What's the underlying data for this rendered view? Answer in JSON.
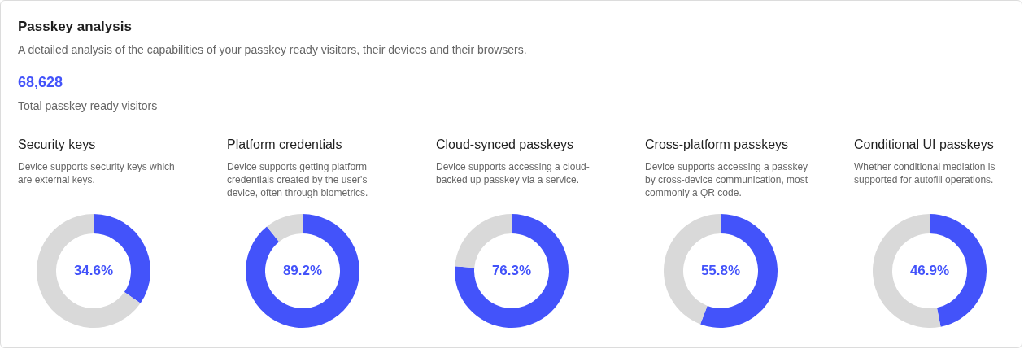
{
  "chart_data": [
    {
      "type": "other",
      "title": "Passkey analysis",
      "subtitle": "A detailed analysis of the capabilities of your passkey ready visitors, their devices and their browsers.",
      "annotations": [
        "68,628",
        "Total passkey ready visitors"
      ]
    },
    {
      "type": "donut",
      "title": "Security keys",
      "subtitle": "Device supports security keys which are external keys.",
      "categories": [
        null,
        null
      ],
      "values": [
        34.6,
        65.4
      ],
      "colors": [
        "#4353fa",
        "#d9d9d9"
      ],
      "value_labels": [
        "34.6%",
        null
      ]
    },
    {
      "type": "donut",
      "title": "Platform credentials",
      "subtitle": "Device supports getting platform credentials created by the user's device, often through biometrics.",
      "categories": [
        null,
        null
      ],
      "values": [
        89.2,
        10.8
      ],
      "colors": [
        "#4353fa",
        "#d9d9d9"
      ],
      "value_labels": [
        "89.2%",
        null
      ]
    },
    {
      "type": "donut",
      "title": "Cloud-synced passkeys",
      "subtitle": "Device supports accessing a cloud-backed up passkey via a service.",
      "categories": [
        null,
        null
      ],
      "values": [
        76.3,
        23.7
      ],
      "colors": [
        "#4353fa",
        "#d9d9d9"
      ],
      "value_labels": [
        "76.3%",
        null
      ]
    },
    {
      "type": "donut",
      "title": "Cross-platform passkeys",
      "subtitle": "Device supports accessing a passkey by cross-device communication, most commonly a QR code.",
      "categories": [
        null,
        null
      ],
      "values": [
        55.8,
        44.2
      ],
      "colors": [
        "#4353fa",
        "#d9d9d9"
      ],
      "value_labels": [
        "55.8%",
        null
      ]
    },
    {
      "type": "donut",
      "title": "Conditional UI passkeys",
      "subtitle": "Whether conditional mediation is supported for autofill operations.",
      "categories": [
        null,
        null
      ],
      "values": [
        46.9,
        53.1
      ],
      "colors": [
        "#4353fa",
        "#d9d9d9"
      ],
      "value_labels": [
        "46.9%",
        null
      ]
    }
  ]
}
